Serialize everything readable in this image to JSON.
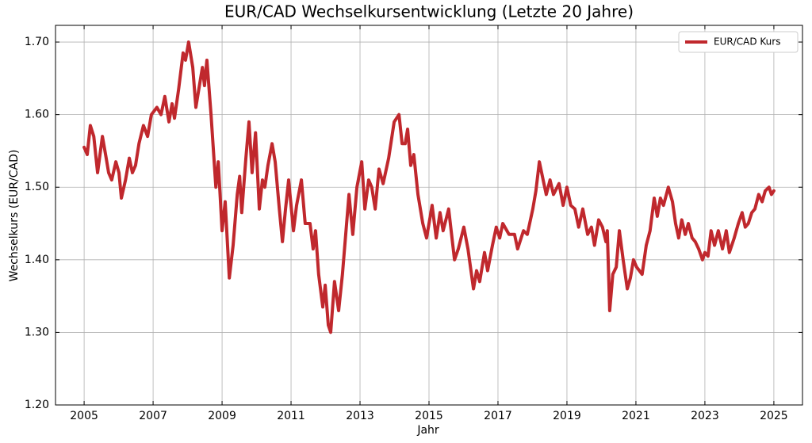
{
  "chart_data": {
    "type": "line",
    "title": "EUR/CAD Wechselkursentwicklung (Letzte 20 Jahre)",
    "xlabel": "Jahr",
    "ylabel": "Wechselkurs (EUR/CAD)",
    "x": [
      2005.0,
      2005.09,
      2005.18,
      2005.28,
      2005.39,
      2005.53,
      2005.64,
      2005.71,
      2005.8,
      2005.92,
      2006.01,
      2006.08,
      2006.2,
      2006.31,
      2006.4,
      2006.49,
      2006.59,
      2006.72,
      2006.84,
      2006.95,
      2007.11,
      2007.23,
      2007.34,
      2007.46,
      2007.55,
      2007.62,
      2007.74,
      2007.87,
      2007.94,
      2008.03,
      2008.15,
      2008.24,
      2008.36,
      2008.43,
      2008.49,
      2008.56,
      2008.68,
      2008.82,
      2008.89,
      2009.0,
      2009.09,
      2009.21,
      2009.32,
      2009.44,
      2009.51,
      2009.57,
      2009.69,
      2009.78,
      2009.87,
      2009.97,
      2010.08,
      2010.17,
      2010.24,
      2010.33,
      2010.45,
      2010.54,
      2010.66,
      2010.75,
      2010.84,
      2010.93,
      2011.07,
      2011.16,
      2011.3,
      2011.41,
      2011.55,
      2011.64,
      2011.71,
      2011.8,
      2011.92,
      2011.99,
      2012.08,
      2012.15,
      2012.26,
      2012.38,
      2012.49,
      2012.68,
      2012.79,
      2012.91,
      2013.05,
      2013.14,
      2013.25,
      2013.34,
      2013.44,
      2013.55,
      2013.67,
      2013.83,
      2013.99,
      2014.13,
      2014.22,
      2014.31,
      2014.38,
      2014.47,
      2014.56,
      2014.68,
      2014.82,
      2014.93,
      2015.09,
      2015.21,
      2015.32,
      2015.41,
      2015.57,
      2015.74,
      2015.85,
      2016.01,
      2016.13,
      2016.29,
      2016.38,
      2016.47,
      2016.61,
      2016.7,
      2016.84,
      2016.95,
      2017.05,
      2017.14,
      2017.32,
      2017.48,
      2017.57,
      2017.74,
      2017.85,
      2018.01,
      2018.1,
      2018.2,
      2018.31,
      2018.4,
      2018.51,
      2018.61,
      2018.77,
      2018.89,
      2019.0,
      2019.11,
      2019.23,
      2019.34,
      2019.46,
      2019.6,
      2019.71,
      2019.8,
      2019.92,
      2020.03,
      2020.13,
      2020.17,
      2020.24,
      2020.33,
      2020.43,
      2020.52,
      2020.63,
      2020.75,
      2020.84,
      2020.93,
      2021.02,
      2021.18,
      2021.3,
      2021.41,
      2021.53,
      2021.62,
      2021.71,
      2021.8,
      2021.94,
      2022.06,
      2022.15,
      2022.24,
      2022.33,
      2022.43,
      2022.52,
      2022.63,
      2022.72,
      2022.82,
      2022.93,
      2023.0,
      2023.09,
      2023.18,
      2023.28,
      2023.39,
      2023.51,
      2023.62,
      2023.71,
      2023.85,
      2023.97,
      2024.08,
      2024.17,
      2024.26,
      2024.36,
      2024.45,
      2024.56,
      2024.66,
      2024.75,
      2024.86,
      2024.93,
      2025.0
    ],
    "series": [
      {
        "name": "EUR/CAD Kurs",
        "color": "#c0282d",
        "values": [
          1.555,
          1.545,
          1.585,
          1.57,
          1.52,
          1.57,
          1.54,
          1.52,
          1.51,
          1.535,
          1.52,
          1.485,
          1.51,
          1.54,
          1.52,
          1.53,
          1.56,
          1.585,
          1.57,
          1.6,
          1.61,
          1.6,
          1.625,
          1.59,
          1.615,
          1.595,
          1.635,
          1.685,
          1.675,
          1.7,
          1.665,
          1.61,
          1.645,
          1.665,
          1.64,
          1.675,
          1.6,
          1.5,
          1.535,
          1.44,
          1.48,
          1.375,
          1.42,
          1.49,
          1.515,
          1.465,
          1.54,
          1.59,
          1.52,
          1.575,
          1.47,
          1.51,
          1.5,
          1.53,
          1.56,
          1.535,
          1.47,
          1.425,
          1.47,
          1.51,
          1.44,
          1.475,
          1.51,
          1.45,
          1.45,
          1.415,
          1.44,
          1.38,
          1.335,
          1.365,
          1.31,
          1.3,
          1.37,
          1.33,
          1.38,
          1.49,
          1.435,
          1.5,
          1.535,
          1.47,
          1.51,
          1.5,
          1.47,
          1.525,
          1.505,
          1.54,
          1.59,
          1.6,
          1.56,
          1.56,
          1.58,
          1.53,
          1.545,
          1.49,
          1.45,
          1.43,
          1.475,
          1.43,
          1.465,
          1.44,
          1.47,
          1.4,
          1.415,
          1.445,
          1.415,
          1.36,
          1.385,
          1.37,
          1.41,
          1.385,
          1.42,
          1.445,
          1.43,
          1.45,
          1.435,
          1.435,
          1.415,
          1.44,
          1.435,
          1.47,
          1.495,
          1.535,
          1.51,
          1.49,
          1.51,
          1.49,
          1.505,
          1.475,
          1.5,
          1.475,
          1.47,
          1.445,
          1.47,
          1.435,
          1.445,
          1.42,
          1.455,
          1.445,
          1.425,
          1.44,
          1.33,
          1.38,
          1.39,
          1.44,
          1.4,
          1.36,
          1.375,
          1.4,
          1.39,
          1.38,
          1.42,
          1.44,
          1.485,
          1.46,
          1.485,
          1.475,
          1.5,
          1.48,
          1.45,
          1.43,
          1.455,
          1.435,
          1.45,
          1.43,
          1.425,
          1.415,
          1.4,
          1.41,
          1.405,
          1.44,
          1.42,
          1.44,
          1.415,
          1.44,
          1.41,
          1.43,
          1.45,
          1.465,
          1.445,
          1.45,
          1.465,
          1.47,
          1.49,
          1.48,
          1.495,
          1.5,
          1.49,
          1.495
        ]
      }
    ],
    "xlim": [
      2004.17,
      2025.83
    ],
    "xticks": [
      2005,
      2007,
      2009,
      2011,
      2013,
      2015,
      2017,
      2019,
      2021,
      2023,
      2025
    ],
    "ylim": [
      1.2,
      1.723
    ],
    "yticks": [
      {
        "value": 1.2,
        "label": "1.20"
      },
      {
        "value": 1.3,
        "label": "1.30"
      },
      {
        "value": 1.4,
        "label": "1.40"
      },
      {
        "value": 1.5,
        "label": "1.50"
      },
      {
        "value": 1.6,
        "label": "1.60"
      },
      {
        "value": 1.7,
        "label": "1.70"
      }
    ],
    "grid": true,
    "legend": "upper right"
  }
}
